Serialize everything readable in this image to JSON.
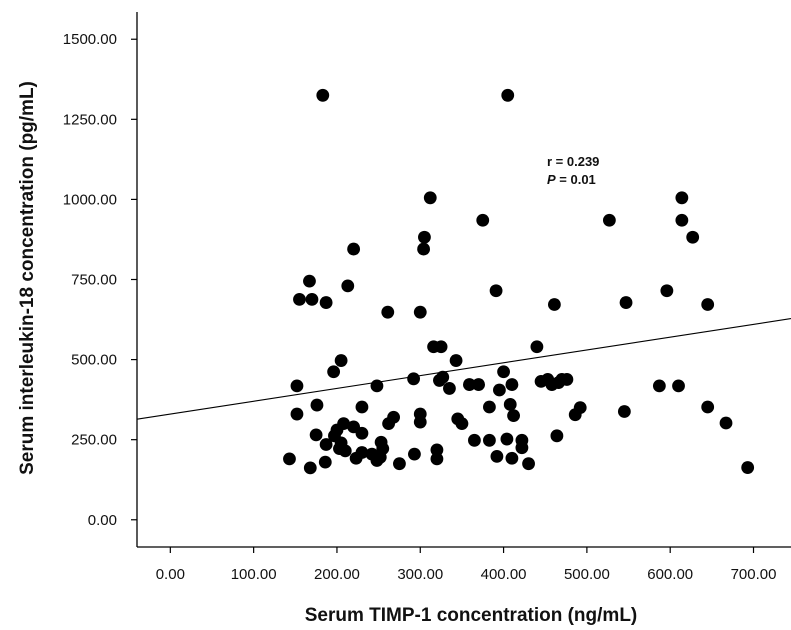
{
  "chart_data": {
    "type": "scatter",
    "xlabel": "Serum TIMP-1 concentration (ng/mL)",
    "ylabel": "Serum interleukin-18 concentration (pg/mL)",
    "x_ticks": [
      "0.00",
      "100.00",
      "200.00",
      "300.00",
      "400.00",
      "500.00",
      "600.00",
      "700.00"
    ],
    "y_ticks": [
      "0.00",
      "250.00",
      "500.00",
      "750.00",
      "1000.00",
      "1250.00",
      "1500.00"
    ],
    "xlim": [
      -40,
      745
    ],
    "ylim": [
      -85,
      1585
    ],
    "grid": false,
    "marker_color": "#000000",
    "annotation": {
      "r_text": "r = 0.239",
      "p_symbol": "P",
      "p_rest": " = 0.01"
    },
    "regression_line": {
      "intercept": 330,
      "slope": 0.4,
      "x_range": [
        -40,
        745
      ]
    },
    "points": [
      [
        183,
        1325
      ],
      [
        405,
        1325
      ],
      [
        312,
        1005
      ],
      [
        614,
        1005
      ],
      [
        375,
        935
      ],
      [
        527,
        935
      ],
      [
        614,
        935
      ],
      [
        305,
        882
      ],
      [
        627,
        882
      ],
      [
        220,
        845
      ],
      [
        304,
        845
      ],
      [
        391,
        715
      ],
      [
        596,
        715
      ],
      [
        167,
        745
      ],
      [
        213,
        730
      ],
      [
        155,
        688
      ],
      [
        170,
        688
      ],
      [
        187,
        678
      ],
      [
        547,
        678
      ],
      [
        645,
        672
      ],
      [
        461,
        672
      ],
      [
        261,
        648
      ],
      [
        300,
        648
      ],
      [
        316,
        540
      ],
      [
        325,
        540
      ],
      [
        440,
        540
      ],
      [
        205,
        497
      ],
      [
        343,
        497
      ],
      [
        196,
        462
      ],
      [
        400,
        462
      ],
      [
        327,
        445
      ],
      [
        453,
        438
      ],
      [
        470,
        438
      ],
      [
        476,
        438
      ],
      [
        292,
        440
      ],
      [
        323,
        435
      ],
      [
        445,
        432
      ],
      [
        458,
        422
      ],
      [
        466,
        428
      ],
      [
        359,
        422
      ],
      [
        370,
        422
      ],
      [
        410,
        422
      ],
      [
        335,
        410
      ],
      [
        395,
        405
      ],
      [
        152,
        418
      ],
      [
        248,
        418
      ],
      [
        587,
        418
      ],
      [
        610,
        418
      ],
      [
        176,
        358
      ],
      [
        230,
        352
      ],
      [
        383,
        352
      ],
      [
        408,
        360
      ],
      [
        412,
        325
      ],
      [
        492,
        350
      ],
      [
        486,
        328
      ],
      [
        545,
        338
      ],
      [
        645,
        352
      ],
      [
        667,
        302
      ],
      [
        152,
        330
      ],
      [
        208,
        300
      ],
      [
        220,
        290
      ],
      [
        200,
        280
      ],
      [
        197,
        262
      ],
      [
        175,
        265
      ],
      [
        230,
        270
      ],
      [
        268,
        320
      ],
      [
        262,
        300
      ],
      [
        300,
        330
      ],
      [
        300,
        305
      ],
      [
        345,
        315
      ],
      [
        350,
        300
      ],
      [
        464,
        262
      ],
      [
        187,
        235
      ],
      [
        205,
        240
      ],
      [
        203,
        222
      ],
      [
        210,
        215
      ],
      [
        223,
        192
      ],
      [
        230,
        210
      ],
      [
        242,
        205
      ],
      [
        253,
        242
      ],
      [
        255,
        222
      ],
      [
        252,
        195
      ],
      [
        248,
        185
      ],
      [
        365,
        248
      ],
      [
        383,
        248
      ],
      [
        404,
        252
      ],
      [
        422,
        248
      ],
      [
        422,
        225
      ],
      [
        293,
        205
      ],
      [
        320,
        218
      ],
      [
        320,
        190
      ],
      [
        392,
        198
      ],
      [
        410,
        192
      ],
      [
        430,
        175
      ],
      [
        143,
        190
      ],
      [
        168,
        162
      ],
      [
        186,
        180
      ],
      [
        275,
        175
      ],
      [
        693,
        163
      ]
    ]
  }
}
